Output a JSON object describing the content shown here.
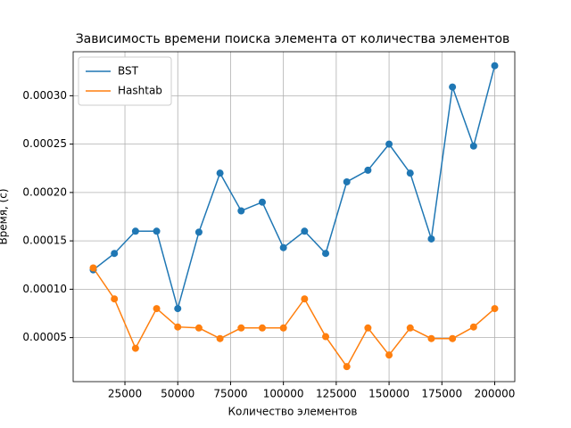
{
  "chart_data": {
    "type": "line",
    "title": "Зависимость времени поиска элемента от количества элементов",
    "x_label": "Количество элементов",
    "y_label": "Время, (с)",
    "x": [
      10000,
      20000,
      30000,
      40000,
      50000,
      60000,
      70000,
      80000,
      90000,
      100000,
      110000,
      120000,
      130000,
      140000,
      150000,
      160000,
      170000,
      180000,
      190000,
      200000
    ],
    "series": [
      {
        "name": "BST",
        "color": "#1f77b4",
        "values": [
          0.00012,
          0.000137,
          0.00016,
          0.00016,
          8e-05,
          0.000159,
          0.00022,
          0.000181,
          0.00019,
          0.000143,
          0.00016,
          0.000137,
          0.000211,
          0.000223,
          0.00025,
          0.00022,
          0.000152,
          0.000309,
          0.000248,
          0.000331
        ]
      },
      {
        "name": "Hashtab",
        "color": "#ff7f0e",
        "values": [
          0.000122,
          9e-05,
          3.9e-05,
          8e-05,
          6.1e-05,
          6e-05,
          4.9e-05,
          6e-05,
          6e-05,
          6e-05,
          9e-05,
          5.1e-05,
          2e-05,
          6e-05,
          3.2e-05,
          6e-05,
          4.9e-05,
          4.9e-05,
          6.1e-05,
          8e-05
        ]
      }
    ],
    "xlim": [
      500,
      209500
    ],
    "ylim": [
      4.5e-06,
      0.0003455
    ],
    "xticks": [
      25000,
      50000,
      75000,
      100000,
      125000,
      150000,
      175000,
      200000
    ],
    "yticks": [
      {
        "value": 5e-05,
        "label": "0.00005"
      },
      {
        "value": 0.0001,
        "label": "0.00010"
      },
      {
        "value": 0.00015,
        "label": "0.00015"
      },
      {
        "value": 0.0002,
        "label": "0.00020"
      },
      {
        "value": 0.00025,
        "label": "0.00025"
      },
      {
        "value": 0.0003,
        "label": "0.00030"
      }
    ],
    "grid": true,
    "legend": "upper-left"
  }
}
